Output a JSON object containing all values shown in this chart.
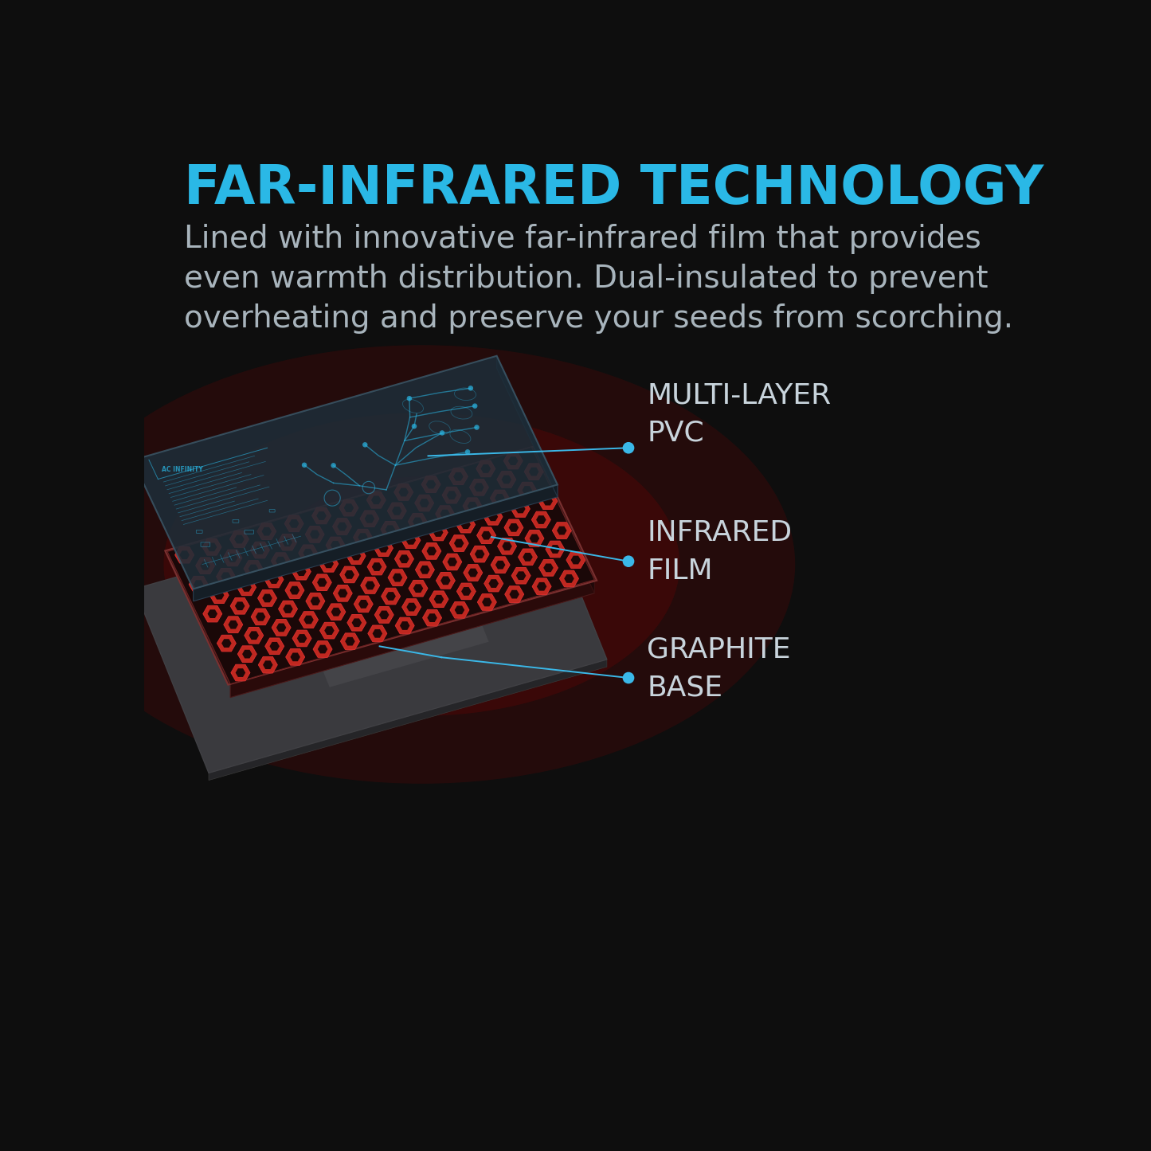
{
  "bg_color": "#0e0e0e",
  "title": "FAR-INFRARED TECHNOLOGY",
  "title_color": "#2ab8e6",
  "title_fontsize": 48,
  "subtitle_lines": [
    "Lined with innovative far-infrared film that provides",
    "even warmth distribution. Dual-insulated to prevent",
    "overheating and preserve your seeds from scorching."
  ],
  "subtitle_color": "#a8b4bc",
  "subtitle_fontsize": 28,
  "layer_labels": [
    "MULTI-LAYER\nPVC",
    "INFRARED\nFILM",
    "GRAPHITE\nBASE"
  ],
  "label_color": "#c8d4dc",
  "label_fontsize": 26,
  "dot_color": "#3ab8e8",
  "line_color": "#3ab8e8",
  "pvc_face": "#1e2d38",
  "pvc_edge": "#3a5565",
  "ir_face": "#1a0808",
  "ir_edge": "#6a2020",
  "gb_face": "#3a3a3e",
  "gb_edge": "#505058",
  "hex_outer": "#c02820",
  "hex_ring": "#e03030",
  "hex_inner": "#1e0808"
}
